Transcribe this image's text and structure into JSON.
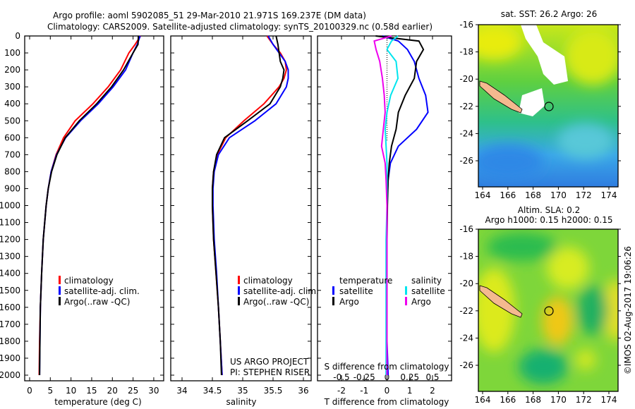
{
  "title": {
    "line1": "Argo profile: aoml 5902085_51 29-Mar-2010 21.971S 169.237E (DM data)",
    "line2": "Climatology: CARS2009. Satellite-adjusted climatology: synTS_20100329.nc (0.58d earlier)"
  },
  "colors": {
    "climatology": "#ff0000",
    "satellite": "#0000ff",
    "argo": "#000000",
    "sat_sal": "#00e5ee",
    "argo_sal": "#ee00ee",
    "land": "#f4b98f"
  },
  "annotations": {
    "project": "US ARGO PROJECT",
    "pi": "PI: STEPHEN RISER",
    "copyright": "©IMOS 02-Aug-2017 19:06:26"
  },
  "legend_profiles": [
    "climatology",
    "satellite-adj. clim.",
    "Argo(..raw -QC)"
  ],
  "legend_diff": {
    "temperature": "temperature",
    "salinity": "salinity",
    "satellite": "satellite",
    "argo": "Argo"
  },
  "maps": {
    "sst": {
      "title": "sat. SST: 26.2 Argo: 26"
    },
    "sla": {
      "title1": "Altim. SLA: 0.2",
      "title2": "Argo h1000: 0.15 h2000: 0.15"
    },
    "lon_ticks": [
      164,
      166,
      168,
      170,
      172,
      174
    ],
    "lat_ticks": [
      -16,
      -18,
      -20,
      -22,
      -24,
      -26
    ],
    "float_position": {
      "lon": 169.237,
      "lat": -21.971
    }
  },
  "chart_data": [
    {
      "type": "line",
      "title": "",
      "xlabel": "temperature (deg C)",
      "ylabel": "",
      "xticks": [
        0,
        5,
        10,
        15,
        20,
        25,
        30
      ],
      "yticks": [
        0,
        100,
        200,
        300,
        400,
        500,
        600,
        700,
        800,
        900,
        1000,
        1100,
        1200,
        1300,
        1400,
        1500,
        1600,
        1700,
        1800,
        1900,
        2000
      ],
      "ylim": [
        2080,
        0
      ],
      "pressure": [
        0,
        50,
        100,
        200,
        300,
        400,
        500,
        600,
        700,
        800,
        900,
        1000,
        1200,
        1400,
        1600,
        1800,
        2000
      ],
      "series": [
        {
          "name": "climatology",
          "values": [
            26.8,
            25.5,
            24.0,
            22.0,
            19.0,
            15.3,
            11.0,
            8.2,
            6.4,
            5.2,
            4.5,
            4.0,
            3.3,
            2.9,
            2.6,
            2.4,
            2.3
          ]
        },
        {
          "name": "satellite-adj. clim.",
          "values": [
            26.7,
            26.0,
            25.0,
            23.2,
            20.2,
            16.6,
            12.3,
            8.7,
            6.5,
            5.2,
            4.5,
            4.0,
            3.3,
            2.9,
            2.6,
            2.5,
            2.4
          ]
        },
        {
          "name": "Argo(..raw -QC)",
          "values": [
            26.3,
            26.2,
            25.0,
            22.7,
            19.8,
            16.2,
            12.0,
            8.6,
            6.6,
            5.3,
            4.5,
            4.0,
            3.3,
            2.9,
            2.6,
            2.5,
            2.4
          ]
        }
      ]
    },
    {
      "type": "line",
      "xlabel": "salinity",
      "xticks": [
        34,
        34.5,
        35,
        35.5,
        36
      ],
      "ylim": [
        2080,
        0
      ],
      "pressure": [
        0,
        50,
        100,
        150,
        200,
        250,
        300,
        400,
        500,
        600,
        700,
        800,
        900,
        1000,
        1200,
        1400,
        1600,
        1800,
        2000
      ],
      "series": [
        {
          "name": "climatology",
          "values": [
            35.4,
            35.5,
            35.62,
            35.7,
            35.72,
            35.68,
            35.6,
            35.35,
            35.02,
            34.72,
            34.58,
            34.52,
            34.5,
            34.5,
            34.52,
            34.56,
            34.6,
            34.63,
            34.66
          ]
        },
        {
          "name": "satellite-adj. clim.",
          "values": [
            35.42,
            35.5,
            35.6,
            35.7,
            35.75,
            35.75,
            35.72,
            35.55,
            35.2,
            34.78,
            34.6,
            34.53,
            34.51,
            34.51,
            34.53,
            34.57,
            34.6,
            34.63,
            34.66
          ]
        },
        {
          "name": "Argo(..raw -QC)",
          "values": [
            35.55,
            35.58,
            35.6,
            35.62,
            35.68,
            35.66,
            35.62,
            35.45,
            35.08,
            34.7,
            34.57,
            34.52,
            34.5,
            34.5,
            34.52,
            34.56,
            34.6,
            34.63,
            34.65
          ]
        }
      ]
    },
    {
      "type": "line",
      "xlabel": "T difference from climatology",
      "x2label": "S difference from climatology",
      "xticks": [
        -2,
        -1,
        0,
        1,
        2
      ],
      "x2ticks": [
        -0.5,
        -0.25,
        0,
        0.25,
        0.5
      ],
      "x2tick_labels": [
        "-0.5",
        "-0.25",
        "0",
        "0.25",
        "0.5"
      ],
      "ylim": [
        2080,
        0
      ],
      "pressure": [
        0,
        30,
        80,
        150,
        250,
        350,
        450,
        550,
        650,
        750,
        850,
        1000,
        1200,
        1500,
        1800,
        2000
      ],
      "series": [
        {
          "name": "temperature satellite",
          "values": [
            -0.2,
            0.5,
            0.9,
            1.2,
            1.4,
            1.7,
            1.8,
            1.3,
            0.5,
            0.15,
            0.05,
            0.0,
            0.0,
            0.0,
            0.0,
            0.05
          ]
        },
        {
          "name": "temperature Argo",
          "values": [
            -0.5,
            1.4,
            1.6,
            1.3,
            1.2,
            0.8,
            0.5,
            0.4,
            0.2,
            0.1,
            0.05,
            0.02,
            0.0,
            0.0,
            0.0,
            0.0
          ]
        },
        {
          "name": "salinity satellite",
          "values": [
            0.12,
            0.05,
            0.0,
            0.1,
            0.12,
            0.04,
            0.0,
            -0.02,
            -0.01,
            0.0,
            0.0,
            0.0,
            -0.01,
            -0.01,
            -0.01,
            -0.01
          ]
        },
        {
          "name": "salinity Argo",
          "values": [
            0.05,
            -0.14,
            -0.12,
            -0.08,
            -0.05,
            -0.03,
            -0.02,
            -0.04,
            -0.06,
            -0.02,
            -0.01,
            0.0,
            0.0,
            0.0,
            0.0,
            0.0
          ]
        }
      ]
    }
  ]
}
